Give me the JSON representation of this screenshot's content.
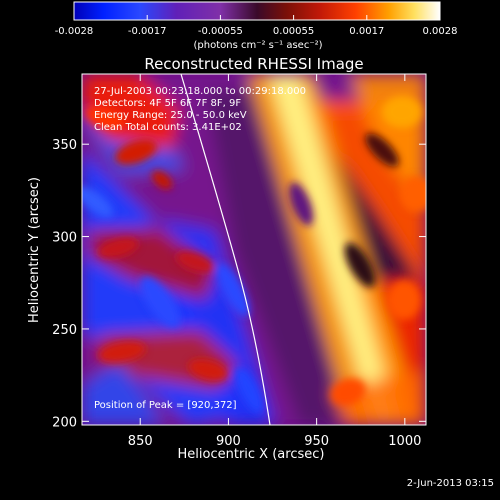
{
  "chart_data": {
    "type": "heatmap",
    "title": "Reconstructed RHESSI Image",
    "xlabel": "Heliocentric X (arcsec)",
    "ylabel": "Heliocentric Y (arcsec)",
    "xlim": [
      817,
      1012
    ],
    "ylim": [
      198,
      388
    ],
    "x_ticks": [
      850,
      900,
      950,
      1000
    ],
    "y_ticks": [
      200,
      250,
      300,
      350
    ],
    "colorbar": {
      "ticks": [
        "-0.0028",
        "-0.0017",
        "-0.00055",
        "0.00055",
        "0.0017",
        "0.0028"
      ],
      "unit": "(photons cm⁻² s⁻¹ asec⁻²)",
      "range": [
        -0.0028,
        0.0028
      ]
    },
    "annotations": {
      "time_range": "27-Jul-2003 00:23:18.000 to 00:29:18.000",
      "detectors": "Detectors: 4F 5F 6F 7F 8F, 9F",
      "energy": "Energy Range: 25.0 - 50.0 keV",
      "clean": "Clean    Total counts: 3.41E+02",
      "peak": "Position of Peak = [920,372]"
    },
    "timestamp": "2-Jun-2013 03:15",
    "colors": {
      "background": "#000000",
      "text": "#ffffff",
      "limb": "#ffffff"
    }
  }
}
